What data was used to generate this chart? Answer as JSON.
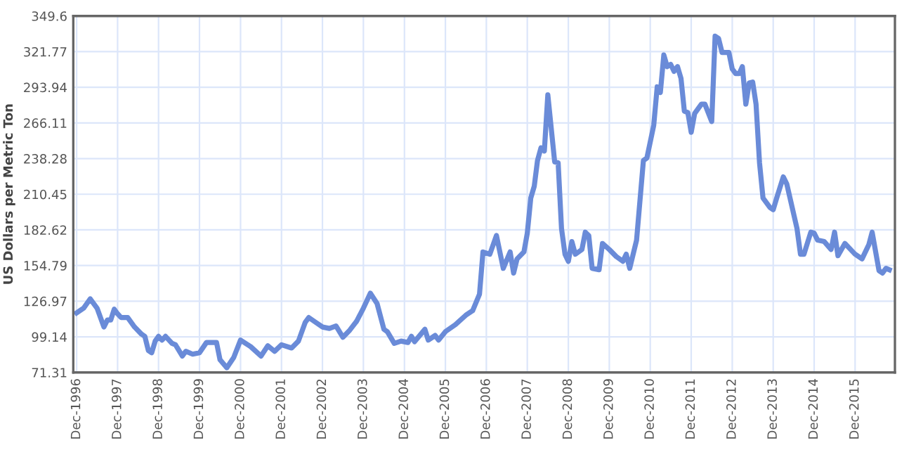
{
  "chart_data": {
    "type": "line",
    "ylabel": "US Dollars per Metric Ton",
    "x": [
      "1996-12",
      "1997-02",
      "1997-04",
      "1997-06",
      "1997-08",
      "1997-09",
      "1997-10",
      "1997-11",
      "1997-12",
      "1998-01",
      "1998-03",
      "1998-05",
      "1998-07",
      "1998-08",
      "1998-09",
      "1998-10",
      "1998-11",
      "1998-12",
      "1999-01",
      "1999-02",
      "1999-04",
      "1999-05",
      "1999-07",
      "1999-08",
      "1999-10",
      "1999-12",
      "2000-02",
      "2000-05",
      "2000-06",
      "2000-08",
      "2000-10",
      "2000-12",
      "2001-03",
      "2001-06",
      "2001-08",
      "2001-10",
      "2001-12",
      "2002-03",
      "2002-05",
      "2002-07",
      "2002-08",
      "2002-10",
      "2002-12",
      "2003-02",
      "2003-04",
      "2003-06",
      "2003-08",
      "2003-10",
      "2003-12",
      "2004-02",
      "2004-04",
      "2004-06",
      "2004-07",
      "2004-09",
      "2004-11",
      "2005-01",
      "2005-02",
      "2005-03",
      "2005-06",
      "2005-07",
      "2005-09",
      "2005-10",
      "2005-12",
      "2006-03",
      "2006-04",
      "2006-06",
      "2006-08",
      "2006-10",
      "2006-11",
      "2007-01",
      "2007-03",
      "2007-05",
      "2007-07",
      "2007-08",
      "2007-09",
      "2007-11",
      "2007-12",
      "2008-01",
      "2008-02",
      "2008-03",
      "2008-04",
      "2008-05",
      "2008-06",
      "2008-08",
      "2008-09",
      "2008-10",
      "2008-11",
      "2008-12",
      "2009-01",
      "2009-02",
      "2009-04",
      "2009-05",
      "2009-06",
      "2009-07",
      "2009-09",
      "2009-10",
      "2009-12",
      "2010-02",
      "2010-04",
      "2010-05",
      "2010-06",
      "2010-08",
      "2010-10",
      "2010-11",
      "2011-01",
      "2011-02",
      "2011-03",
      "2011-04",
      "2011-05",
      "2011-06",
      "2011-07",
      "2011-08",
      "2011-09",
      "2011-10",
      "2011-11",
      "2011-12",
      "2012-01",
      "2012-03",
      "2012-04",
      "2012-06",
      "2012-07",
      "2012-08",
      "2012-09",
      "2012-11",
      "2012-12",
      "2013-01",
      "2013-02",
      "2013-03",
      "2013-04",
      "2013-05",
      "2013-06",
      "2013-07",
      "2013-08",
      "2013-09",
      "2013-11",
      "2013-12",
      "2014-01",
      "2014-03",
      "2014-04",
      "2014-07",
      "2014-08",
      "2014-09",
      "2014-11",
      "2014-12",
      "2015-01",
      "2015-03",
      "2015-05",
      "2015-06",
      "2015-07",
      "2015-09",
      "2015-12",
      "2016-02",
      "2016-04",
      "2016-05",
      "2016-07",
      "2016-08",
      "2016-09",
      "2016-10"
    ],
    "series": [
      {
        "color": "#6a8bd8",
        "values": [
          117.8,
          121.5,
          128.8,
          121.5,
          106.8,
          112.3,
          112.3,
          120.7,
          117.1,
          114.2,
          114.2,
          106.8,
          101.3,
          99.5,
          88.5,
          86.7,
          95.8,
          99.5,
          96.6,
          99.5,
          94.0,
          92.9,
          84.1,
          87.8,
          85.6,
          86.7,
          94.7,
          94.7,
          81.2,
          75.0,
          83.0,
          96.6,
          91.5,
          84.1,
          92.2,
          87.8,
          92.9,
          90.4,
          95.8,
          110.5,
          114.2,
          110.5,
          106.8,
          105.7,
          107.6,
          98.8,
          104.3,
          111.2,
          121.5,
          133.2,
          125.1,
          105.0,
          103.2,
          94.0,
          95.8,
          94.7,
          99.5,
          95.3,
          105.0,
          96.6,
          100.2,
          96.6,
          103.2,
          108.7,
          111.2,
          116.0,
          119.6,
          132.5,
          165.4,
          163.6,
          178.2,
          152.6,
          165.4,
          148.9,
          160.0,
          165.4,
          180.1,
          207.5,
          216.7,
          236.8,
          246.7,
          244.2,
          288.1,
          235.7,
          235.0,
          183.7,
          163.6,
          158.1,
          173.5,
          163.6,
          167.3,
          180.8,
          178.2,
          152.6,
          151.5,
          172.0,
          167.3,
          161.8,
          158.1,
          163.6,
          152.6,
          174.6,
          236.8,
          238.7,
          264.3,
          294.3,
          289.9,
          319.2,
          310.1,
          311.9,
          306.4,
          310.1,
          300.9,
          275.3,
          274.2,
          258.8,
          273.5,
          280.8,
          280.8,
          267.2,
          333.9,
          332.0,
          321.1,
          321.1,
          308.2,
          304.6,
          304.6,
          310.1,
          280.8,
          297.3,
          298.0,
          280.8,
          235.0,
          207.5,
          200.2,
          198.4,
          207.5,
          224.0,
          218.5,
          183.7,
          163.6,
          163.6,
          180.8,
          180.1,
          174.6,
          173.5,
          167.3,
          180.8,
          162.5,
          172.0,
          163.6,
          160.0,
          171.0,
          180.8,
          150.8,
          148.9,
          152.6,
          151.5
        ]
      }
    ],
    "xlim": [
      "1996-11",
      "2016-11-20"
    ],
    "xticks": [
      {
        "value": "1996-12",
        "label": "Dec-1996"
      },
      {
        "value": "1997-12",
        "label": "Dec-1997"
      },
      {
        "value": "1998-12",
        "label": "Dec-1998"
      },
      {
        "value": "1999-12",
        "label": "Dec-1999"
      },
      {
        "value": "2000-12",
        "label": "Dec-2000"
      },
      {
        "value": "2001-12",
        "label": "Dec-2001"
      },
      {
        "value": "2002-12",
        "label": "Dec-2002"
      },
      {
        "value": "2003-12",
        "label": "Dec-2003"
      },
      {
        "value": "2004-12",
        "label": "Dec-2004"
      },
      {
        "value": "2005-12",
        "label": "Dec-2005"
      },
      {
        "value": "2006-12",
        "label": "Dec-2006"
      },
      {
        "value": "2007-12",
        "label": "Dec-2007"
      },
      {
        "value": "2008-12",
        "label": "Dec-2008"
      },
      {
        "value": "2009-12",
        "label": "Dec-2009"
      },
      {
        "value": "2010-12",
        "label": "Dec-2010"
      },
      {
        "value": "2011-12",
        "label": "Dec-2011"
      },
      {
        "value": "2012-12",
        "label": "Dec-2012"
      },
      {
        "value": "2013-12",
        "label": "Dec-2013"
      },
      {
        "value": "2014-12",
        "label": "Dec-2014"
      },
      {
        "value": "2015-12",
        "label": "Dec-2015"
      }
    ],
    "ylim": [
      71.31,
      349.6
    ],
    "yticks": [
      71.31,
      99.14,
      126.97,
      154.79,
      182.62,
      210.45,
      238.28,
      266.11,
      293.94,
      321.77,
      349.6
    ],
    "grid": true,
    "marker": "none",
    "line_style": "solid",
    "legend": false
  }
}
